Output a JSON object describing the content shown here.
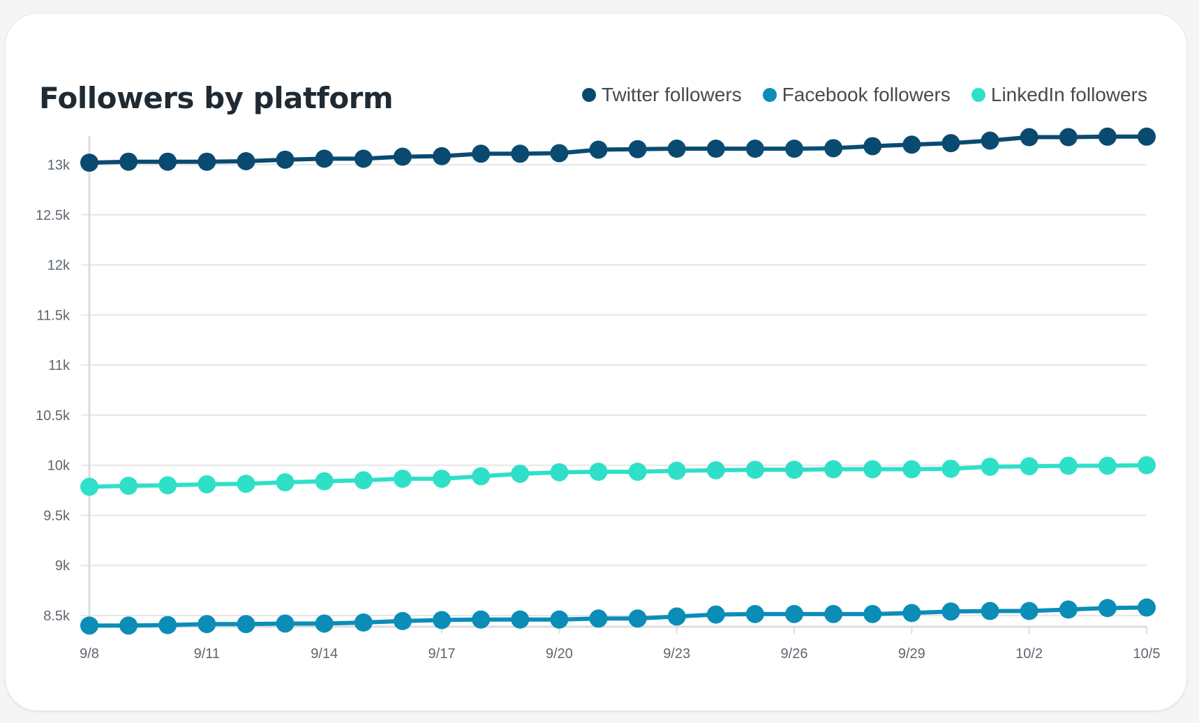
{
  "colors": {
    "background": "#f5f5f5",
    "card": "#ffffff",
    "grid": "#e6e6e6",
    "axis": "#dddddd",
    "tick_text": "#5d6670",
    "title": "#1f2a33"
  },
  "chart_data": {
    "type": "line",
    "title": "Followers by platform",
    "xlabel": "",
    "ylabel": "",
    "ylim": [
      8400,
      13300
    ],
    "grid": true,
    "legend_position": "top-right",
    "x": [
      "9/8",
      "9/9",
      "9/10",
      "9/11",
      "9/12",
      "9/13",
      "9/14",
      "9/15",
      "9/16",
      "9/17",
      "9/18",
      "9/19",
      "9/20",
      "9/21",
      "9/22",
      "9/23",
      "9/24",
      "9/25",
      "9/26",
      "9/27",
      "9/28",
      "9/29",
      "9/30",
      "10/1",
      "10/2",
      "10/3",
      "10/4",
      "10/5"
    ],
    "x_tick_labels": [
      "9/8",
      "9/11",
      "9/14",
      "9/17",
      "9/20",
      "9/23",
      "9/26",
      "9/29",
      "10/2",
      "10/5"
    ],
    "y_ticks": [
      8500,
      9000,
      9500,
      10000,
      10500,
      11000,
      11500,
      12000,
      12500,
      13000
    ],
    "y_tick_labels": [
      "8.5k",
      "9k",
      "9.5k",
      "10k",
      "10.5k",
      "11k",
      "11.5k",
      "12k",
      "12.5k",
      "13k"
    ],
    "series": [
      {
        "name": "Twitter followers",
        "color": "#0b4a70",
        "values": [
          13020,
          13030,
          13030,
          13030,
          13035,
          13050,
          13060,
          13060,
          13080,
          13085,
          13110,
          13110,
          13115,
          13150,
          13155,
          13160,
          13160,
          13160,
          13160,
          13165,
          13185,
          13200,
          13215,
          13240,
          13275,
          13275,
          13280,
          13280
        ]
      },
      {
        "name": "Facebook followers",
        "color": "#0b8db8",
        "values": [
          8400,
          8400,
          8405,
          8415,
          8415,
          8420,
          8420,
          8430,
          8445,
          8455,
          8460,
          8460,
          8460,
          8470,
          8470,
          8490,
          8510,
          8515,
          8515,
          8515,
          8515,
          8525,
          8540,
          8545,
          8545,
          8560,
          8575,
          8580
        ]
      },
      {
        "name": "LinkedIn followers",
        "color": "#2fe0c8",
        "values": [
          9785,
          9795,
          9800,
          9810,
          9815,
          9830,
          9840,
          9850,
          9865,
          9865,
          9890,
          9915,
          9930,
          9935,
          9935,
          9945,
          9950,
          9955,
          9955,
          9960,
          9960,
          9960,
          9965,
          9985,
          9990,
          9995,
          9995,
          10000
        ]
      }
    ]
  }
}
